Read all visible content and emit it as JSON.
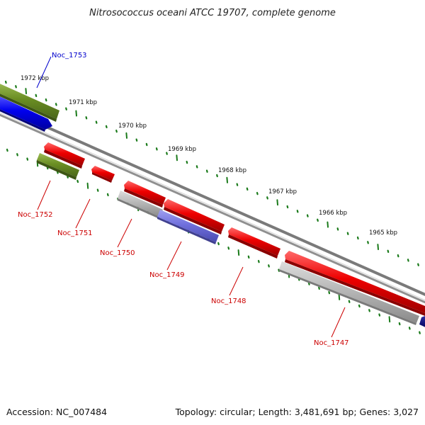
{
  "title": "Nitrosococcus oceani ATCC 19707, complete genome",
  "footer": {
    "accession": "Accession: NC_007484",
    "summary": "Topology: circular; Length: 3,481,691 bp; Genes: 3,027"
  },
  "colors": {
    "forward_cds": "#ee0000",
    "reverse_cds": "#ee0000",
    "olive_gene": "#6b8e23",
    "blue_gene": "#0000ee",
    "grey_gene": "#b0b0b0",
    "purple_gene": "#7070dd",
    "navy_gene": "#00007a",
    "backbone": "#808080",
    "tick": "#1a7a1a",
    "label_red": "#cc0000",
    "label_blue": "#0000cc"
  },
  "kbp_ticks": [
    {
      "label": "1972 kbp"
    },
    {
      "label": "1971 kbp"
    },
    {
      "label": "1970 kbp"
    },
    {
      "label": "1969 kbp"
    },
    {
      "label": "1968 kbp"
    },
    {
      "label": "1967 kbp"
    },
    {
      "label": "1966 kbp"
    },
    {
      "label": "1965 kbp"
    }
  ],
  "genes": [
    {
      "name": "Noc_1753",
      "label_color": "blue"
    },
    {
      "name": "Noc_1752",
      "label_color": "red"
    },
    {
      "name": "Noc_1751",
      "label_color": "red"
    },
    {
      "name": "Noc_1750",
      "label_color": "red"
    },
    {
      "name": "Noc_1749",
      "label_color": "red"
    },
    {
      "name": "Noc_1748",
      "label_color": "red"
    },
    {
      "name": "Noc_1747",
      "label_color": "red"
    }
  ]
}
